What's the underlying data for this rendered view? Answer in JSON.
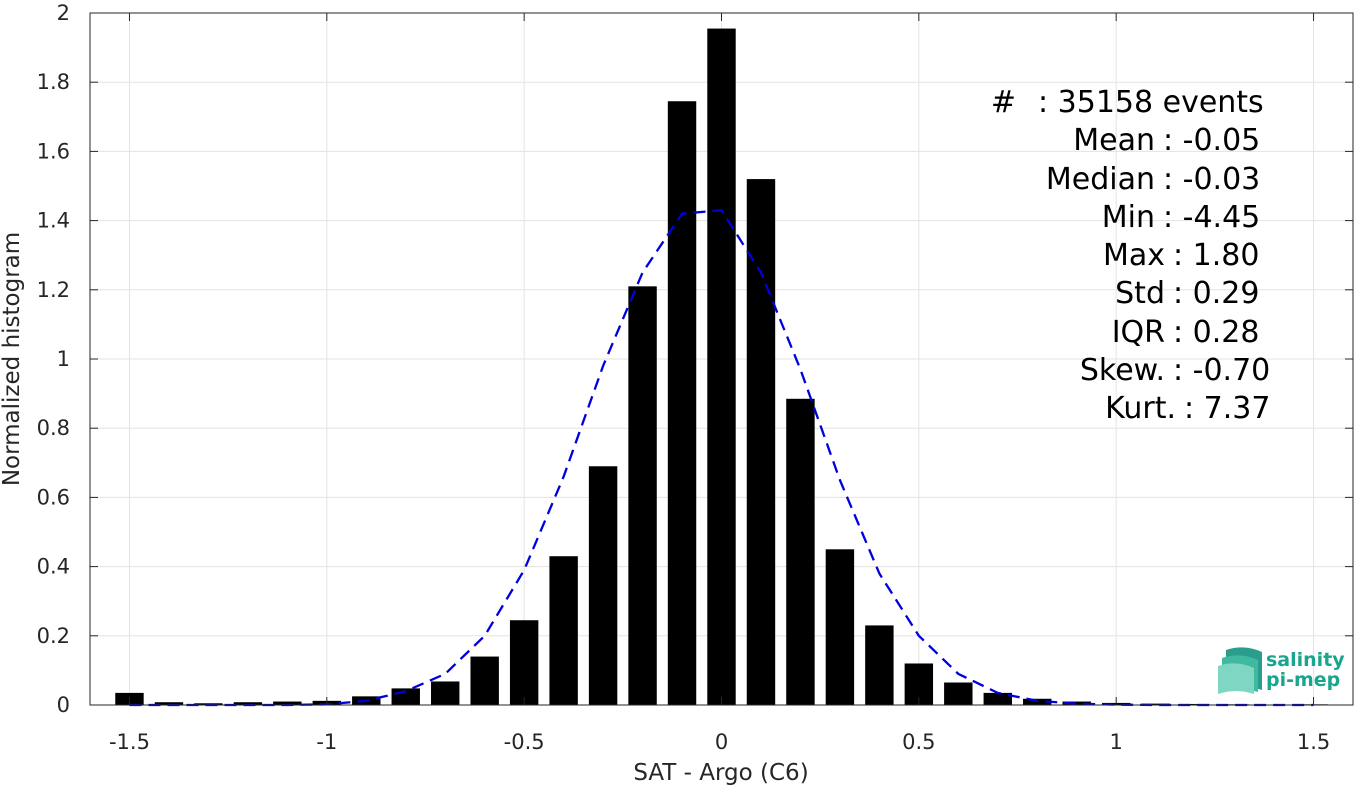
{
  "chart_data": {
    "type": "bar",
    "xlabel": "SAT - Argo (C6)",
    "ylabel": "Normalized histogram",
    "xlim": [
      -1.6,
      1.6
    ],
    "ylim": [
      0,
      2
    ],
    "grid": true,
    "x_ticks": [
      {
        "value": -1.5,
        "label": "-1.5"
      },
      {
        "value": -1,
        "label": "-1"
      },
      {
        "value": -0.5,
        "label": "-0.5"
      },
      {
        "value": 0,
        "label": "0"
      },
      {
        "value": 0.5,
        "label": "0.5"
      },
      {
        "value": 1,
        "label": "1"
      },
      {
        "value": 1.5,
        "label": "1.5"
      }
    ],
    "y_ticks": [
      {
        "value": 0,
        "label": "0"
      },
      {
        "value": 0.2,
        "label": "0.2"
      },
      {
        "value": 0.4,
        "label": "0.4"
      },
      {
        "value": 0.6,
        "label": "0.6"
      },
      {
        "value": 0.8,
        "label": "0.8"
      },
      {
        "value": 1,
        "label": "1"
      },
      {
        "value": 1.2,
        "label": "1.2"
      },
      {
        "value": 1.4,
        "label": "1.4"
      },
      {
        "value": 1.6,
        "label": "1.6"
      },
      {
        "value": 1.8,
        "label": "1.8"
      },
      {
        "value": 2,
        "label": "2"
      }
    ],
    "bar_color": "#000000",
    "bin_width": 0.1,
    "bars": {
      "x": [
        -1.5,
        -1.4,
        -1.3,
        -1.2,
        -1.1,
        -1.0,
        -0.9,
        -0.8,
        -0.7,
        -0.6,
        -0.5,
        -0.4,
        -0.3,
        -0.2,
        -0.1,
        0.0,
        0.1,
        0.2,
        0.3,
        0.4,
        0.5,
        0.6,
        0.7,
        0.8,
        0.9,
        1.0,
        1.1,
        1.2,
        1.3,
        1.4,
        1.5
      ],
      "values": [
        0.035,
        0.008,
        0.005,
        0.008,
        0.01,
        0.012,
        0.025,
        0.048,
        0.068,
        0.14,
        0.245,
        0.43,
        0.69,
        1.21,
        1.745,
        1.955,
        1.52,
        0.885,
        0.45,
        0.23,
        0.12,
        0.065,
        0.035,
        0.018,
        0.01,
        0.006,
        0.004,
        0.003,
        0.002,
        0.001,
        0.002
      ]
    },
    "curve": {
      "style": "dashed",
      "color": "#0000dd",
      "x": [
        -1.5,
        -1.4,
        -1.3,
        -1.2,
        -1.1,
        -1.0,
        -0.9,
        -0.8,
        -0.7,
        -0.6,
        -0.5,
        -0.4,
        -0.3,
        -0.2,
        -0.1,
        0.0,
        0.1,
        0.2,
        0.3,
        0.4,
        0.5,
        0.6,
        0.7,
        0.8,
        0.9,
        1.0,
        1.1,
        1.2,
        1.3,
        1.4,
        1.5
      ],
      "values": [
        0.0,
        0.0,
        0.0,
        0.0,
        0.0,
        0.002,
        0.012,
        0.04,
        0.09,
        0.2,
        0.39,
        0.66,
        0.98,
        1.25,
        1.42,
        1.43,
        1.25,
        0.97,
        0.65,
        0.38,
        0.2,
        0.09,
        0.035,
        0.012,
        0.004,
        0.001,
        0.0,
        0.0,
        0.0,
        0.0,
        0.0
      ]
    },
    "stats_box": {
      "placement": "top-right",
      "lines": [
        {
          "label": "#",
          "value": ": 35158 events"
        },
        {
          "label": "Mean",
          "value": ": -0.05"
        },
        {
          "label": "Median",
          "value": ": -0.03"
        },
        {
          "label": "Min",
          "value": ": -4.45"
        },
        {
          "label": "Max",
          "value": ": 1.80"
        },
        {
          "label": "Std",
          "value": ": 0.29"
        },
        {
          "label": "IQR",
          "value": ": 0.28"
        },
        {
          "label": "Skew.",
          "value": ": -0.70"
        },
        {
          "label": "Kurt.",
          "value": ": 7.37"
        }
      ]
    }
  },
  "logo": {
    "line1": "salinity",
    "line2": "pi-mep",
    "color": "#1aa68e"
  }
}
